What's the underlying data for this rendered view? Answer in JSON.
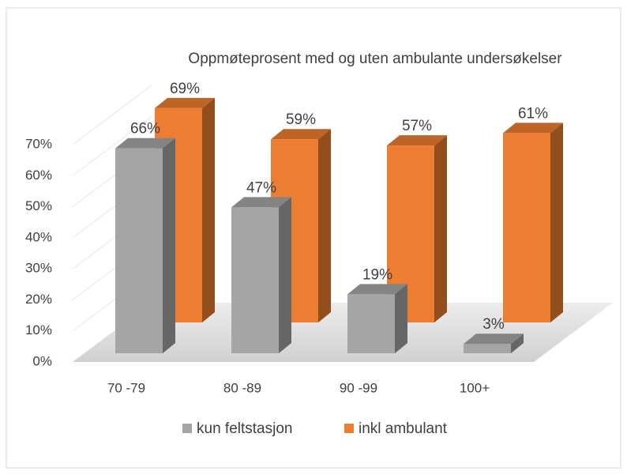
{
  "chart_data": {
    "type": "bar3d",
    "title": "Oppmøteprosent med og uten ambulante undersøkelser",
    "categories": [
      "70 -79",
      "80 -89",
      "90 -99",
      "100+"
    ],
    "series": [
      {
        "name": "kun feltstasjon",
        "color": "#a5a5a5",
        "values": [
          66,
          47,
          19,
          3
        ],
        "value_labels": [
          "66%",
          "47%",
          "19%",
          "3%"
        ]
      },
      {
        "name": "inkl ambulant",
        "color": "#ed7d31",
        "values": [
          69,
          59,
          57,
          61
        ],
        "value_labels": [
          "69%",
          "59%",
          "57%",
          "61%"
        ]
      }
    ],
    "ylim": [
      0,
      70
    ],
    "yticks": [
      {
        "value": 0,
        "label": "0%"
      },
      {
        "value": 10,
        "label": "10%"
      },
      {
        "value": 20,
        "label": "20%"
      },
      {
        "value": 30,
        "label": "30%"
      },
      {
        "value": 40,
        "label": "40%"
      },
      {
        "value": 50,
        "label": "50%"
      },
      {
        "value": 60,
        "label": "60%"
      },
      {
        "value": 70,
        "label": "70%"
      }
    ],
    "grid": true,
    "legend": "bottom"
  }
}
